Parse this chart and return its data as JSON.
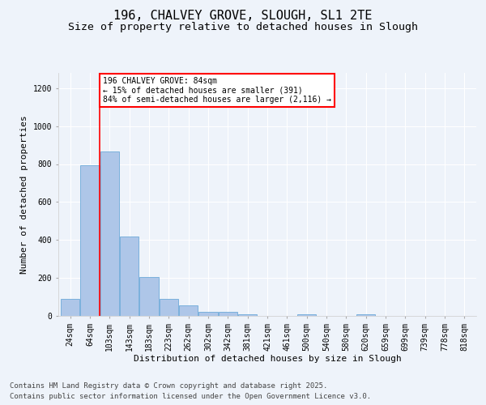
{
  "title": "196, CHALVEY GROVE, SLOUGH, SL1 2TE",
  "subtitle": "Size of property relative to detached houses in Slough",
  "xlabel": "Distribution of detached houses by size in Slough",
  "ylabel": "Number of detached properties",
  "footnote1": "Contains HM Land Registry data © Crown copyright and database right 2025.",
  "footnote2": "Contains public sector information licensed under the Open Government Licence v3.0.",
  "categories": [
    "24sqm",
    "64sqm",
    "103sqm",
    "143sqm",
    "183sqm",
    "223sqm",
    "262sqm",
    "302sqm",
    "342sqm",
    "381sqm",
    "421sqm",
    "461sqm",
    "500sqm",
    "540sqm",
    "580sqm",
    "620sqm",
    "659sqm",
    "699sqm",
    "739sqm",
    "778sqm",
    "818sqm"
  ],
  "values": [
    90,
    795,
    865,
    420,
    205,
    90,
    57,
    22,
    22,
    10,
    0,
    0,
    8,
    0,
    0,
    10,
    0,
    0,
    0,
    0,
    0
  ],
  "bar_color": "#aec6e8",
  "bar_edge_color": "#5a9fd4",
  "vline_x": 1.5,
  "vline_color": "red",
  "annotation_text": "196 CHALVEY GROVE: 84sqm\n← 15% of detached houses are smaller (391)\n84% of semi-detached houses are larger (2,116) →",
  "annotation_box_color": "red",
  "annotation_bg": "white",
  "ylim": [
    0,
    1280
  ],
  "yticks": [
    0,
    200,
    400,
    600,
    800,
    1000,
    1200
  ],
  "background_color": "#eef3fa",
  "grid_color": "white",
  "title_fontsize": 11,
  "subtitle_fontsize": 9.5,
  "axis_label_fontsize": 8,
  "tick_fontsize": 7,
  "footnote_fontsize": 6.5
}
